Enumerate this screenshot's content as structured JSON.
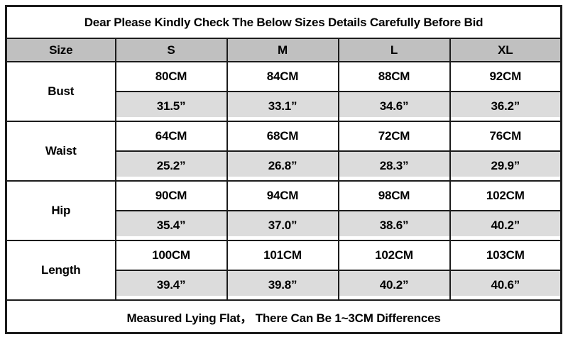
{
  "title": "Dear Please Kindly Check The Below Sizes Details Carefully Before Bid",
  "footer": "Measured Lying Flat， There Can Be 1~3CM Differences",
  "table": {
    "header": [
      "Size",
      "S",
      "M",
      "L",
      "XL"
    ],
    "rows": [
      {
        "label": "Bust",
        "cm": [
          "80CM",
          "84CM",
          "88CM",
          "92CM"
        ],
        "inch": [
          "31.5”",
          "33.1”",
          "34.6”",
          "36.2”"
        ]
      },
      {
        "label": "Waist",
        "cm": [
          "64CM",
          "68CM",
          "72CM",
          "76CM"
        ],
        "inch": [
          "25.2”",
          "26.8”",
          "28.3”",
          "29.9”"
        ]
      },
      {
        "label": "Hip",
        "cm": [
          "90CM",
          "94CM",
          "98CM",
          "102CM"
        ],
        "inch": [
          "35.4”",
          "37.0”",
          "38.6”",
          "40.2”"
        ]
      },
      {
        "label": "Length",
        "cm": [
          "100CM",
          "101CM",
          "102CM",
          "103CM"
        ],
        "inch": [
          "39.4”",
          "39.8”",
          "40.2”",
          "40.6”"
        ]
      }
    ]
  },
  "colors": {
    "header_bg": "#c0c0c0",
    "inch_row_bg": "#dcdcdc",
    "border": "#1c1c1c",
    "text": "#000000"
  },
  "chart_data": {
    "type": "table",
    "title": "Dear Please Kindly Check The Below Sizes Details Carefully Before Bid",
    "columns": [
      "Size",
      "S",
      "M",
      "L",
      "XL"
    ],
    "rows_cm": {
      "Bust": [
        80,
        84,
        88,
        92
      ],
      "Waist": [
        64,
        68,
        72,
        76
      ],
      "Hip": [
        90,
        94,
        98,
        102
      ],
      "Length": [
        100,
        101,
        102,
        103
      ]
    },
    "rows_inch": {
      "Bust": [
        31.5,
        33.1,
        34.6,
        36.2
      ],
      "Waist": [
        25.2,
        26.8,
        28.3,
        29.9
      ],
      "Hip": [
        35.4,
        37.0,
        38.6,
        40.2
      ],
      "Length": [
        39.4,
        39.8,
        40.2,
        40.6
      ]
    },
    "note": "Measured Lying Flat， There Can Be 1~3CM Differences"
  }
}
